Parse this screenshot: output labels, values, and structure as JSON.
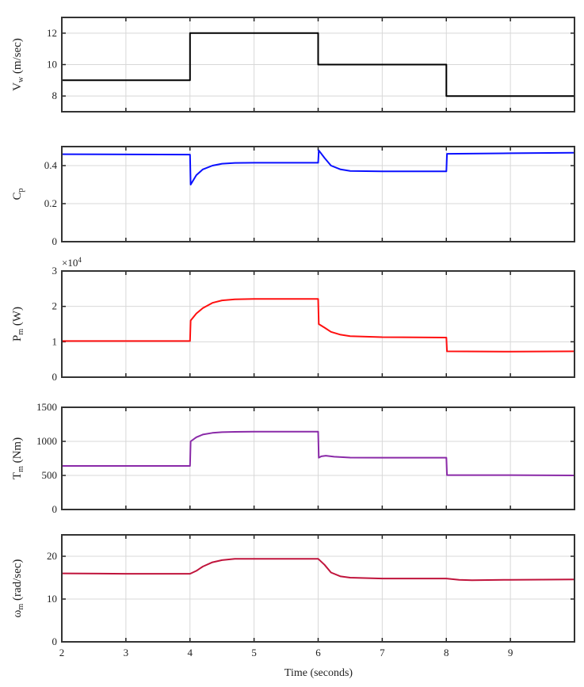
{
  "chart_data": [
    {
      "type": "line",
      "ylabel": {
        "sym": "V",
        "sub": "w",
        "unit": " (m/sec)"
      },
      "color": "#000000",
      "xlim": [
        2,
        10
      ],
      "ylim": [
        7,
        13
      ],
      "yticks": [
        8,
        10,
        12
      ],
      "x": [
        2,
        4,
        4,
        6,
        6,
        8,
        8,
        10
      ],
      "y": [
        9,
        9,
        12,
        12,
        10,
        10,
        8,
        8
      ]
    },
    {
      "type": "line",
      "ylabel": {
        "sym": "C",
        "sub": "p",
        "unit": ""
      },
      "color": "#0a10ff",
      "xlim": [
        2,
        10
      ],
      "ylim": [
        0,
        0.5
      ],
      "yticks": [
        0,
        0.2,
        0.4
      ],
      "x": [
        2,
        4,
        4.01,
        4.1,
        4.2,
        4.35,
        4.5,
        4.7,
        5,
        6,
        6.01,
        6.1,
        6.2,
        6.35,
        6.5,
        7,
        8,
        8.01,
        9,
        10
      ],
      "y": [
        0.46,
        0.458,
        0.3,
        0.35,
        0.38,
        0.4,
        0.41,
        0.414,
        0.415,
        0.415,
        0.48,
        0.44,
        0.4,
        0.38,
        0.372,
        0.37,
        0.37,
        0.462,
        0.465,
        0.468
      ]
    },
    {
      "type": "line",
      "ylabel": {
        "sym": "P",
        "sub": "m",
        "unit": " (W)"
      },
      "exponent": "×10",
      "exponent_power": "4",
      "color": "#ff1010",
      "xlim": [
        2,
        10
      ],
      "ylim": [
        0,
        3
      ],
      "yticks": [
        0,
        1,
        2,
        3
      ],
      "x": [
        2,
        4,
        4.01,
        4.1,
        4.2,
        4.35,
        4.5,
        4.7,
        5,
        6,
        6.01,
        6.1,
        6.2,
        6.35,
        6.5,
        7,
        8,
        8.01,
        9,
        10
      ],
      "y": [
        1.02,
        1.02,
        1.6,
        1.8,
        1.95,
        2.1,
        2.17,
        2.2,
        2.21,
        2.21,
        1.5,
        1.4,
        1.28,
        1.2,
        1.16,
        1.13,
        1.12,
        0.73,
        0.72,
        0.73
      ]
    },
    {
      "type": "line",
      "ylabel": {
        "sym": "T",
        "sub": "m",
        "unit": " (Nm)"
      },
      "color": "#8a2aa8",
      "xlim": [
        2,
        10
      ],
      "ylim": [
        0,
        1500
      ],
      "yticks": [
        0,
        500,
        1000,
        1500
      ],
      "x": [
        2,
        4,
        4.01,
        4.1,
        4.2,
        4.35,
        4.5,
        4.7,
        5,
        6,
        6.01,
        6.05,
        6.12,
        6.25,
        6.5,
        7,
        8,
        8.01,
        9,
        10
      ],
      "y": [
        640,
        640,
        1000,
        1060,
        1100,
        1125,
        1135,
        1140,
        1142,
        1142,
        760,
        780,
        790,
        775,
        762,
        760,
        760,
        505,
        505,
        500
      ]
    },
    {
      "type": "line",
      "ylabel": {
        "sym": "ω",
        "sub": "m",
        "unit": " (rad/sec)"
      },
      "color": "#c0143c",
      "xlim": [
        2,
        10
      ],
      "ylim": [
        0,
        25
      ],
      "yticks": [
        0,
        10,
        20
      ],
      "x": [
        2,
        3,
        4,
        4.1,
        4.2,
        4.35,
        4.5,
        4.7,
        5,
        6,
        6.1,
        6.2,
        6.35,
        6.5,
        7,
        8,
        8.2,
        8.4,
        9,
        10
      ],
      "y": [
        16,
        15.9,
        15.9,
        16.6,
        17.6,
        18.6,
        19.1,
        19.4,
        19.4,
        19.4,
        18,
        16.2,
        15.3,
        15,
        14.8,
        14.8,
        14.5,
        14.4,
        14.5,
        14.6
      ]
    }
  ],
  "xticks": [
    2,
    3,
    4,
    5,
    6,
    7,
    8,
    9
  ],
  "xlabel": "Time (seconds)"
}
